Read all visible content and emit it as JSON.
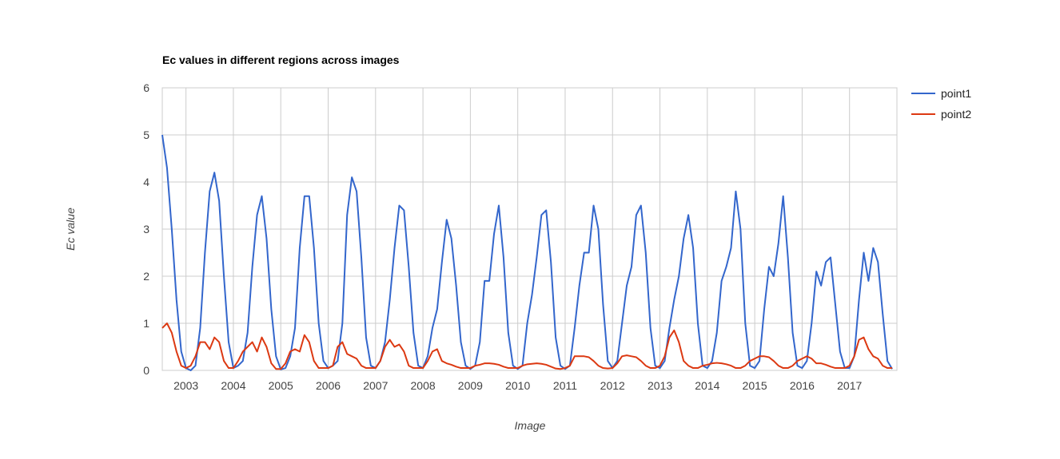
{
  "chart_data": {
    "type": "line",
    "title": "Ec values in different regions across images",
    "x_label": "Image",
    "y_label": "Ec value",
    "x": [
      2002.5,
      2002.6,
      2002.7,
      2002.8,
      2002.9,
      2003.0,
      2003.1,
      2003.2,
      2003.3,
      2003.4,
      2003.5,
      2003.6,
      2003.7,
      2003.8,
      2003.9,
      2004.0,
      2004.1,
      2004.2,
      2004.3,
      2004.4,
      2004.5,
      2004.6,
      2004.7,
      2004.8,
      2004.9,
      2005.0,
      2005.1,
      2005.2,
      2005.3,
      2005.4,
      2005.5,
      2005.6,
      2005.7,
      2005.8,
      2005.9,
      2006.0,
      2006.1,
      2006.2,
      2006.3,
      2006.4,
      2006.5,
      2006.6,
      2006.7,
      2006.8,
      2006.9,
      2007.0,
      2007.1,
      2007.2,
      2007.3,
      2007.4,
      2007.5,
      2007.6,
      2007.7,
      2007.8,
      2007.9,
      2008.0,
      2008.1,
      2008.2,
      2008.3,
      2008.4,
      2008.5,
      2008.6,
      2008.7,
      2008.8,
      2008.9,
      2009.0,
      2009.1,
      2009.2,
      2009.3,
      2009.4,
      2009.5,
      2009.6,
      2009.7,
      2009.8,
      2009.9,
      2010.0,
      2010.1,
      2010.2,
      2010.3,
      2010.4,
      2010.5,
      2010.6,
      2010.7,
      2010.8,
      2010.9,
      2011.0,
      2011.1,
      2011.2,
      2011.3,
      2011.4,
      2011.5,
      2011.6,
      2011.7,
      2011.8,
      2011.9,
      2012.0,
      2012.1,
      2012.2,
      2012.3,
      2012.4,
      2012.5,
      2012.6,
      2012.7,
      2012.8,
      2012.9,
      2013.0,
      2013.1,
      2013.2,
      2013.3,
      2013.4,
      2013.5,
      2013.6,
      2013.7,
      2013.8,
      2013.9,
      2014.0,
      2014.1,
      2014.2,
      2014.3,
      2014.4,
      2014.5,
      2014.6,
      2014.7,
      2014.8,
      2014.9,
      2015.0,
      2015.1,
      2015.2,
      2015.3,
      2015.4,
      2015.5,
      2015.6,
      2015.7,
      2015.8,
      2015.9,
      2016.0,
      2016.1,
      2016.2,
      2016.3,
      2016.4,
      2016.5,
      2016.6,
      2016.7,
      2016.8,
      2016.9,
      2017.0,
      2017.1,
      2017.2,
      2017.3,
      2017.4,
      2017.5,
      2017.6,
      2017.7,
      2017.8,
      2017.9
    ],
    "series": [
      {
        "name": "point1",
        "color": "#3366cc",
        "values": [
          5.0,
          4.3,
          3.0,
          1.5,
          0.4,
          0.05,
          0,
          0.1,
          0.9,
          2.5,
          3.8,
          4.2,
          3.6,
          2.0,
          0.6,
          0.05,
          0.1,
          0.2,
          0.8,
          2.2,
          3.3,
          3.7,
          2.8,
          1.3,
          0.3,
          0.02,
          0.05,
          0.3,
          0.9,
          2.6,
          3.7,
          3.7,
          2.6,
          1.0,
          0.2,
          0.05,
          0.1,
          0.2,
          1.0,
          3.3,
          4.1,
          3.8,
          2.4,
          0.7,
          0.1,
          0.05,
          0.2,
          0.6,
          1.5,
          2.6,
          3.5,
          3.4,
          2.2,
          0.8,
          0.1,
          0.05,
          0.3,
          0.9,
          1.3,
          2.3,
          3.2,
          2.8,
          1.8,
          0.6,
          0.1,
          0.03,
          0.1,
          0.6,
          1.9,
          1.9,
          2.9,
          3.5,
          2.4,
          0.8,
          0.1,
          0.03,
          0.1,
          1.0,
          1.6,
          2.4,
          3.3,
          3.4,
          2.3,
          0.7,
          0.1,
          0.03,
          0.1,
          0.9,
          1.8,
          2.5,
          2.5,
          3.5,
          3.0,
          1.4,
          0.2,
          0.05,
          0.2,
          1.0,
          1.8,
          2.2,
          3.3,
          3.5,
          2.5,
          0.9,
          0.1,
          0.05,
          0.2,
          0.9,
          1.5,
          2.0,
          2.8,
          3.3,
          2.6,
          1.0,
          0.1,
          0.05,
          0.2,
          0.8,
          1.9,
          2.2,
          2.6,
          3.8,
          3.0,
          1.0,
          0.1,
          0.05,
          0.2,
          1.3,
          2.2,
          2.0,
          2.7,
          3.7,
          2.4,
          0.8,
          0.1,
          0.05,
          0.2,
          1.0,
          2.1,
          1.8,
          2.3,
          2.4,
          1.4,
          0.4,
          0.05,
          0.05,
          0.3,
          1.5,
          2.5,
          1.9,
          2.6,
          2.3,
          1.2,
          0.2,
          0.03
        ]
      },
      {
        "name": "point2",
        "color": "#dc3912",
        "values": [
          0.9,
          1.0,
          0.8,
          0.4,
          0.1,
          0.05,
          0.1,
          0.3,
          0.6,
          0.6,
          0.45,
          0.7,
          0.6,
          0.2,
          0.05,
          0.05,
          0.2,
          0.4,
          0.5,
          0.6,
          0.4,
          0.7,
          0.5,
          0.15,
          0.03,
          0.03,
          0.15,
          0.4,
          0.45,
          0.4,
          0.75,
          0.6,
          0.2,
          0.05,
          0.05,
          0.05,
          0.1,
          0.5,
          0.6,
          0.35,
          0.3,
          0.25,
          0.1,
          0.05,
          0.05,
          0.05,
          0.2,
          0.5,
          0.65,
          0.5,
          0.55,
          0.4,
          0.1,
          0.05,
          0.05,
          0.05,
          0.2,
          0.4,
          0.45,
          0.2,
          0.15,
          0.12,
          0.08,
          0.05,
          0.05,
          0.05,
          0.1,
          0.12,
          0.15,
          0.15,
          0.14,
          0.12,
          0.08,
          0.05,
          0.05,
          0.05,
          0.1,
          0.13,
          0.14,
          0.15,
          0.14,
          0.12,
          0.08,
          0.04,
          0.03,
          0.05,
          0.1,
          0.3,
          0.3,
          0.3,
          0.28,
          0.2,
          0.1,
          0.05,
          0.04,
          0.05,
          0.15,
          0.3,
          0.32,
          0.3,
          0.28,
          0.2,
          0.1,
          0.05,
          0.05,
          0.1,
          0.3,
          0.7,
          0.85,
          0.6,
          0.2,
          0.1,
          0.05,
          0.05,
          0.1,
          0.12,
          0.15,
          0.16,
          0.15,
          0.13,
          0.1,
          0.05,
          0.05,
          0.1,
          0.2,
          0.25,
          0.3,
          0.3,
          0.28,
          0.2,
          0.1,
          0.05,
          0.05,
          0.1,
          0.2,
          0.25,
          0.3,
          0.25,
          0.15,
          0.15,
          0.12,
          0.08,
          0.05,
          0.05,
          0.05,
          0.1,
          0.3,
          0.65,
          0.7,
          0.45,
          0.3,
          0.25,
          0.1,
          0.05,
          0.05
        ]
      }
    ],
    "xlim": [
      2002.5,
      2018.0
    ],
    "xticks": [
      2003,
      2004,
      2005,
      2006,
      2007,
      2008,
      2009,
      2010,
      2011,
      2012,
      2013,
      2014,
      2015,
      2016,
      2017
    ],
    "ylim": [
      0,
      6
    ],
    "yticks": [
      0,
      1,
      2,
      3,
      4,
      5,
      6
    ],
    "grid": true,
    "legend": "right"
  }
}
